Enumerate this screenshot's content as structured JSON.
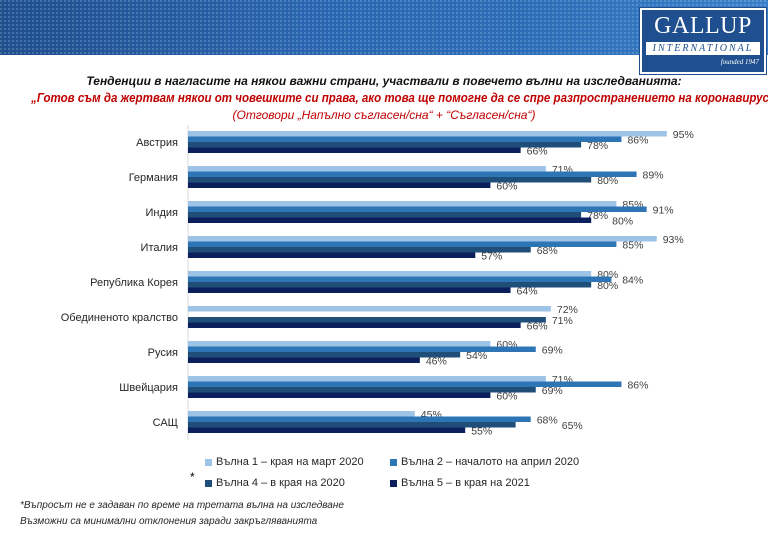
{
  "logo": {
    "name": "GALLUP",
    "sub": "INTERNATIONAL",
    "founded": "founded 1947"
  },
  "title": "Тенденции в нагласите на някои важни страни, участвали в повечето вълни на изследванията:",
  "question": "„Готов съм да жертвам някои от човешките си права, ако това ще помогне да се спре разпространението на коронавируса“",
  "subtitle": "(Отговори „Напълно съгласен/сна“ + “Съгласен/сна“)",
  "colors": {
    "wave1": "#9dc3e6",
    "wave2": "#2e75b6",
    "wave4": "#1f4e79",
    "wave5": "#0b1f5c"
  },
  "chart_data": {
    "type": "bar",
    "orientation": "horizontal",
    "categories": [
      "Австрия",
      "Германия",
      "Индия",
      "Италия",
      "Република Корея",
      "Обединеното кралство",
      "Русия",
      "Швейцария",
      "САЩ"
    ],
    "series": [
      {
        "name": "Вълна 1 – края на март 2020",
        "values": [
          95,
          71,
          85,
          93,
          80,
          72,
          60,
          71,
          45
        ]
      },
      {
        "name": "Вълна 2 – началото на април 2020",
        "values": [
          86,
          89,
          91,
          85,
          84,
          null,
          69,
          86,
          68
        ]
      },
      {
        "name": "Вълна 4 – в края на 2020",
        "values": [
          78,
          80,
          78,
          68,
          80,
          71,
          54,
          69,
          65
        ]
      },
      {
        "name": "Вълна 5 – в края на 2021",
        "values": [
          66,
          60,
          80,
          57,
          64,
          66,
          46,
          60,
          55
        ]
      }
    ],
    "value_suffix": "%",
    "xlim": [
      0,
      100
    ],
    "legend": "bottom"
  },
  "legend_asterisk": "*",
  "footnotes": [
    "*Въпросът не е задаван по време на третата вълна на изследване",
    "Възможни са минимални отклонения заради закръгляванията"
  ]
}
